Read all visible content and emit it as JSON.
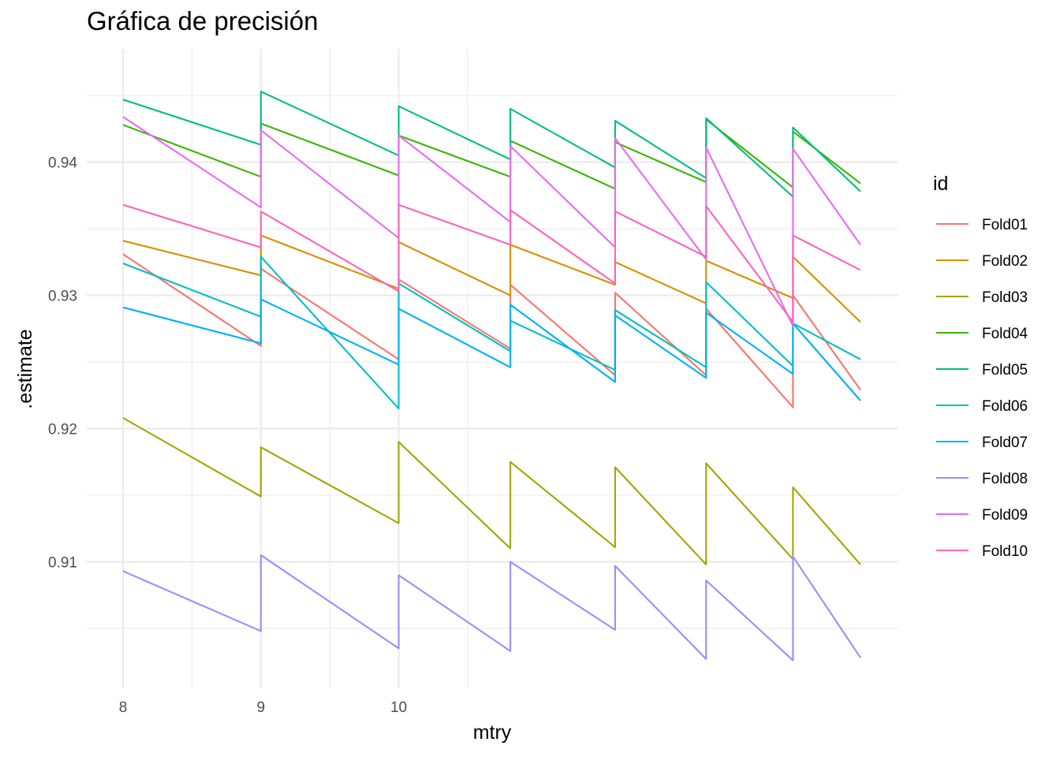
{
  "chart_data": {
    "type": "line",
    "title": "Gráfica de precisión",
    "xlabel": "mtry",
    "ylabel": ".estimate",
    "xlim": [
      8,
      13.35
    ],
    "ylim": [
      0.9005,
      0.9485
    ],
    "x_ticks": [
      8,
      9,
      10
    ],
    "y_ticks": [
      0.91,
      0.92,
      0.93,
      0.94
    ],
    "y_tick_labels": [
      "0.91",
      "0.92",
      "0.93",
      "0.94"
    ],
    "grid": true,
    "legend_title": "id",
    "legend_position": "right",
    "series": [
      {
        "name": "Fold01",
        "color": "#F8766D",
        "points": [
          [
            8,
            0.9331
          ],
          [
            9,
            0.9262
          ],
          [
            9,
            0.932
          ],
          [
            10,
            0.9252
          ],
          [
            10,
            0.9312
          ],
          [
            10.81,
            0.926
          ],
          [
            10.81,
            0.9308
          ],
          [
            11.57,
            0.924
          ],
          [
            11.57,
            0.9302
          ],
          [
            12.23,
            0.924
          ],
          [
            12.23,
            0.929
          ],
          [
            12.86,
            0.9216
          ],
          [
            12.86,
            0.93
          ],
          [
            13.35,
            0.9229
          ]
        ]
      },
      {
        "name": "Fold02",
        "color": "#D89000",
        "points": [
          [
            8,
            0.9341
          ],
          [
            9,
            0.9315
          ],
          [
            9,
            0.9345
          ],
          [
            10,
            0.9305
          ],
          [
            10,
            0.934
          ],
          [
            10.81,
            0.93
          ],
          [
            10.81,
            0.9338
          ],
          [
            11.57,
            0.9308
          ],
          [
            11.57,
            0.9325
          ],
          [
            12.23,
            0.9294
          ],
          [
            12.23,
            0.9326
          ],
          [
            12.86,
            0.9298
          ],
          [
            12.86,
            0.9329
          ],
          [
            13.35,
            0.928
          ]
        ]
      },
      {
        "name": "Fold03",
        "color": "#A3A500",
        "points": [
          [
            8,
            0.9208
          ],
          [
            9,
            0.9149
          ],
          [
            9,
            0.9186
          ],
          [
            10,
            0.9129
          ],
          [
            10,
            0.919
          ],
          [
            10.81,
            0.911
          ],
          [
            10.81,
            0.9175
          ],
          [
            11.57,
            0.9111
          ],
          [
            11.57,
            0.9171
          ],
          [
            12.23,
            0.9098
          ],
          [
            12.23,
            0.9174
          ],
          [
            12.86,
            0.9102
          ],
          [
            12.86,
            0.9156
          ],
          [
            13.35,
            0.9098
          ]
        ]
      },
      {
        "name": "Fold04",
        "color": "#39B600",
        "points": [
          [
            8,
            0.9428
          ],
          [
            9,
            0.9389
          ],
          [
            9,
            0.9429
          ],
          [
            10,
            0.939
          ],
          [
            10,
            0.942
          ],
          [
            10.81,
            0.9389
          ],
          [
            10.81,
            0.9416
          ],
          [
            11.57,
            0.938
          ],
          [
            11.57,
            0.9415
          ],
          [
            12.23,
            0.9385
          ],
          [
            12.23,
            0.9432
          ],
          [
            12.86,
            0.9381
          ],
          [
            12.86,
            0.9423
          ],
          [
            13.35,
            0.9384
          ]
        ]
      },
      {
        "name": "Fold05",
        "color": "#00BF7D",
        "points": [
          [
            8,
            0.9447
          ],
          [
            9,
            0.9413
          ],
          [
            9,
            0.9453
          ],
          [
            10,
            0.9405
          ],
          [
            10,
            0.9442
          ],
          [
            10.81,
            0.9402
          ],
          [
            10.81,
            0.944
          ],
          [
            11.57,
            0.9396
          ],
          [
            11.57,
            0.9431
          ],
          [
            12.23,
            0.9388
          ],
          [
            12.23,
            0.9433
          ],
          [
            12.86,
            0.9374
          ],
          [
            12.86,
            0.9426
          ],
          [
            13.35,
            0.9378
          ]
        ]
      },
      {
        "name": "Fold06",
        "color": "#00BFC4",
        "points": [
          [
            8,
            0.9324
          ],
          [
            9,
            0.9284
          ],
          [
            9,
            0.9329
          ],
          [
            10,
            0.9215
          ],
          [
            10,
            0.9309
          ],
          [
            10.81,
            0.9258
          ],
          [
            10.81,
            0.9281
          ],
          [
            11.57,
            0.9244
          ],
          [
            11.57,
            0.9289
          ],
          [
            12.23,
            0.9246
          ],
          [
            12.23,
            0.931
          ],
          [
            12.86,
            0.9247
          ],
          [
            12.86,
            0.9279
          ],
          [
            13.35,
            0.9252
          ]
        ]
      },
      {
        "name": "Fold07",
        "color": "#00B0F6",
        "points": [
          [
            8,
            0.9291
          ],
          [
            9,
            0.9264
          ],
          [
            9,
            0.9297
          ],
          [
            10,
            0.9248
          ],
          [
            10,
            0.929
          ],
          [
            10.81,
            0.9246
          ],
          [
            10.81,
            0.9293
          ],
          [
            11.57,
            0.9235
          ],
          [
            11.57,
            0.9285
          ],
          [
            12.23,
            0.9238
          ],
          [
            12.23,
            0.9287
          ],
          [
            12.86,
            0.9241
          ],
          [
            12.86,
            0.9279
          ],
          [
            13.35,
            0.9221
          ]
        ]
      },
      {
        "name": "Fold08",
        "color": "#9590FF",
        "points": [
          [
            8,
            0.9093
          ],
          [
            9,
            0.9048
          ],
          [
            9,
            0.9105
          ],
          [
            10,
            0.9035
          ],
          [
            10,
            0.909
          ],
          [
            10.81,
            0.9033
          ],
          [
            10.81,
            0.91
          ],
          [
            11.57,
            0.9049
          ],
          [
            11.57,
            0.9097
          ],
          [
            12.23,
            0.9027
          ],
          [
            12.23,
            0.9086
          ],
          [
            12.86,
            0.9026
          ],
          [
            12.86,
            0.9104
          ],
          [
            13.35,
            0.9028
          ]
        ]
      },
      {
        "name": "Fold09",
        "color": "#E76BF3",
        "points": [
          [
            8,
            0.9434
          ],
          [
            9,
            0.9366
          ],
          [
            9,
            0.9424
          ],
          [
            10,
            0.9343
          ],
          [
            10,
            0.942
          ],
          [
            10.81,
            0.9355
          ],
          [
            10.81,
            0.9412
          ],
          [
            11.57,
            0.9336
          ],
          [
            11.57,
            0.9418
          ],
          [
            12.23,
            0.9327
          ],
          [
            12.23,
            0.9411
          ],
          [
            12.86,
            0.9277
          ],
          [
            12.86,
            0.941
          ],
          [
            13.35,
            0.9338
          ]
        ]
      },
      {
        "name": "Fold10",
        "color": "#FF62BC",
        "points": [
          [
            8,
            0.9368
          ],
          [
            9,
            0.9336
          ],
          [
            9,
            0.9363
          ],
          [
            10,
            0.9303
          ],
          [
            10,
            0.9368
          ],
          [
            10.81,
            0.9338
          ],
          [
            10.81,
            0.9364
          ],
          [
            11.57,
            0.9309
          ],
          [
            11.57,
            0.9363
          ],
          [
            12.23,
            0.9329
          ],
          [
            12.23,
            0.9367
          ],
          [
            12.86,
            0.928
          ],
          [
            12.86,
            0.9345
          ],
          [
            13.35,
            0.9319
          ]
        ]
      }
    ]
  }
}
